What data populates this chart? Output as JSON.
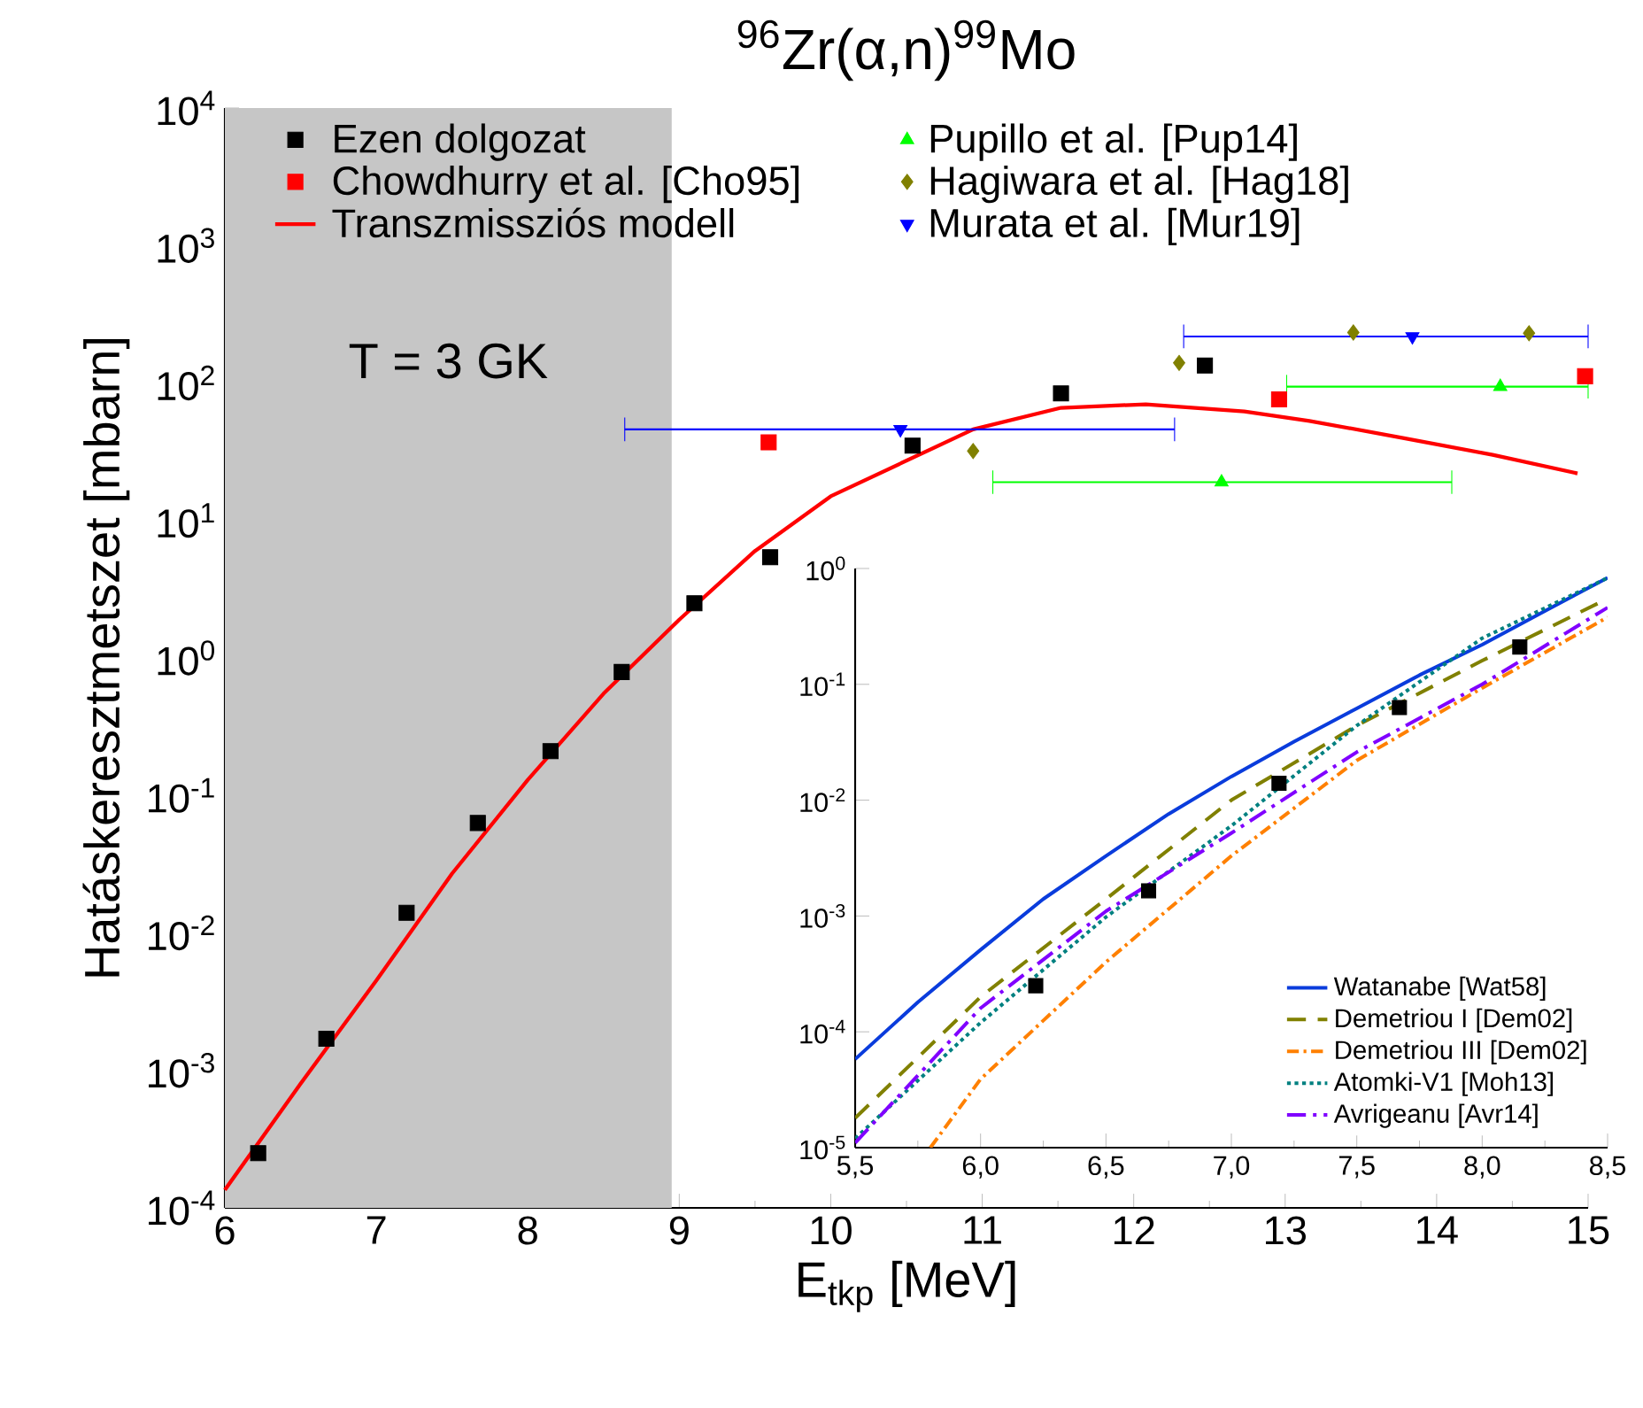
{
  "chart_data": [
    {
      "type": "scatter",
      "title": "$^{96}$Zr(α,n)$^{99}$Mo",
      "xlabel": "E$_{tkp}$ [MeV]",
      "ylabel": "Hatáskeresztmetszet [mbarn]",
      "log": "y",
      "xlim": [
        6,
        15
      ],
      "xticks": [
        6,
        7,
        8,
        9,
        10,
        11,
        12,
        13,
        14,
        15
      ],
      "ylim": [
        0.0001,
        10000
      ],
      "yticks": [
        {
          "value": 0.0001,
          "label": "10$^{-4}$"
        },
        {
          "value": 0.001,
          "label": "10$^{-3}$"
        },
        {
          "value": 0.01,
          "label": "10$^{-2}$"
        },
        {
          "value": 0.1,
          "label": "10$^{-1}$"
        },
        {
          "value": 1,
          "label": "10$^{0}$"
        },
        {
          "value": 10,
          "label": "10$^{1}$"
        },
        {
          "value": 100,
          "label": "10$^{2}$"
        },
        {
          "value": 1000,
          "label": "10$^{3}$"
        },
        {
          "value": 10000,
          "label": "10$^{4}$"
        }
      ],
      "legend": "top",
      "bands": [
        {
          "axis": "x",
          "from": 6,
          "to": 8.95,
          "label": "T = 3 GK",
          "color": "#c6c6c6"
        }
      ],
      "series": [
        {
          "name": "Ezen dolgozat",
          "color": "#000000",
          "marker": "square",
          "x": [
            6.22,
            6.67,
            7.2,
            7.67,
            8.15,
            8.62,
            9.1,
            9.6,
            10.54,
            11.52,
            12.47
          ],
          "values": [
            0.00025,
            0.0017,
            0.014,
            0.063,
            0.21,
            0.79,
            2.5,
            5.4,
            35,
            84,
            134
          ]
        },
        {
          "name": "Chowdhurry et al. [Cho95]",
          "color": "#ff0000",
          "marker": "square",
          "x": [
            9.59,
            12.96,
            14.98
          ],
          "values": [
            37,
            76,
            112
          ]
        },
        {
          "name": "Transzmissziós modell",
          "type": "line",
          "color": "#ff0000",
          "marker": "none",
          "x": [
            6,
            6.5,
            7,
            7.5,
            8,
            8.5,
            9,
            9.5,
            10,
            10.94,
            11.52,
            12.08,
            12.73,
            13.16,
            13.77,
            14.37,
            14.93
          ],
          "values": [
            0.000135,
            0.0008,
            0.0045,
            0.027,
            0.13,
            0.55,
            1.9,
            6,
            15,
            46,
            66,
            70,
            62,
            53,
            40,
            30,
            22
          ]
        },
        {
          "name": "Pupillo et al. [Pup14]",
          "color": "#00ff00",
          "marker": "triangle",
          "x": [
            12.58,
            14.42
          ],
          "values": [
            19,
            94
          ],
          "xerrors": [
            [
              11.07,
              14.1
            ],
            [
              13.01,
              15
            ]
          ]
        },
        {
          "name": "Hagiwara et al. [Hag18]",
          "color": "#808000",
          "marker": "diamond",
          "x": [
            10.94,
            12.3,
            13.45,
            14.61
          ],
          "values": [
            32,
            140,
            233,
            230
          ]
        },
        {
          "name": "Murata et al. [Mur19]",
          "color": "#0000ff",
          "marker": "triangle-down",
          "x": [
            10.46,
            13.84
          ],
          "values": [
            46,
            218
          ],
          "xerrors": [
            [
              8.64,
              12.27
            ],
            [
              12.33,
              15
            ]
          ]
        }
      ]
    },
    {
      "type": "line",
      "log": "y",
      "xlim": [
        5.5,
        8.5
      ],
      "xticks": [
        {
          "value": 5.5,
          "label": "5,5"
        },
        {
          "value": 6,
          "label": "6,0"
        },
        {
          "value": 6.5,
          "label": "6,5"
        },
        {
          "value": 7,
          "label": "7,0"
        },
        {
          "value": 7.5,
          "label": "7,5"
        },
        {
          "value": 8,
          "label": "8,0"
        },
        {
          "value": 8.5,
          "label": "8,5"
        }
      ],
      "ylim": [
        1e-05,
        1
      ],
      "yticks": [
        {
          "value": 1e-05,
          "label": "10$^{-5}$"
        },
        {
          "value": 0.0001,
          "label": "10$^{-4}$"
        },
        {
          "value": 0.001,
          "label": "10$^{-3}$"
        },
        {
          "value": 0.01,
          "label": "10$^{-2}$"
        },
        {
          "value": 0.1,
          "label": "10$^{-1}$"
        },
        {
          "value": 1,
          "label": "10$^{0}$"
        }
      ],
      "legend": "bottom right",
      "series": [
        {
          "name": "Watanabe [Wat58]",
          "color": "#0a3cdc",
          "line_style": "solid",
          "x": [
            5.5,
            5.75,
            6,
            6.25,
            6.5,
            6.75,
            7,
            7.25,
            7.5,
            7.75,
            8,
            8.25,
            8.5
          ],
          "values": [
            5.8e-05,
            0.00018,
            0.00051,
            0.0014,
            0.0033,
            0.0076,
            0.016,
            0.032,
            0.062,
            0.12,
            0.22,
            0.43,
            0.83
          ]
        },
        {
          "name": "Demetriou I [Dem02]",
          "color": "#808000",
          "line_style": "dashed",
          "x": [
            5.5,
            6,
            6.5,
            7,
            7.5,
            8,
            8.5
          ],
          "values": [
            1.8e-05,
            0.0002,
            0.0014,
            0.01,
            0.044,
            0.16,
            0.55
          ]
        },
        {
          "name": "Demetriou III [Dem02]",
          "color": "#ff8000",
          "line_style": "dashdot",
          "x": [
            5.8,
            6,
            6.5,
            7,
            7.5,
            8,
            8.5
          ],
          "values": [
            1e-05,
            3.9e-05,
            0.0004,
            0.0033,
            0.022,
            0.093,
            0.38
          ]
        },
        {
          "name": "Atomki-V1 [Moh13]",
          "color": "#008080",
          "line_style": "dotted",
          "x": [
            5.5,
            6,
            6.5,
            7,
            7.5,
            8,
            8.5
          ],
          "values": [
            1.2e-05,
            0.00012,
            0.00098,
            0.006,
            0.044,
            0.25,
            0.83
          ]
        },
        {
          "name": "Avrigeanu [Avr14]",
          "color": "#8000ff",
          "line_style": "longdashdot",
          "x": [
            5.5,
            6,
            6.5,
            7,
            7.5,
            8,
            8.5
          ],
          "values": [
            1.1e-05,
            0.00016,
            0.0011,
            0.0052,
            0.026,
            0.1,
            0.46
          ]
        },
        {
          "type": "scatter",
          "color": "#000000",
          "marker": "square",
          "x": [
            6.22,
            6.67,
            7.19,
            7.67,
            8.15
          ],
          "values": [
            0.00025,
            0.00165,
            0.014,
            0.063,
            0.21
          ]
        }
      ]
    }
  ]
}
